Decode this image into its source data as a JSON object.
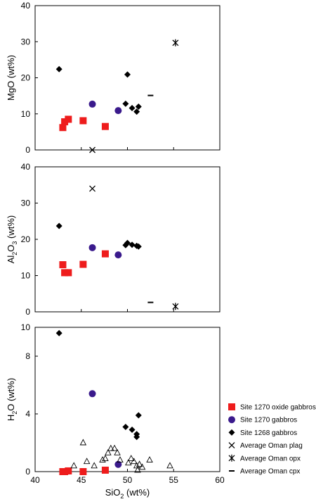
{
  "chart_data": [
    {
      "type": "scatter",
      "panel": "top",
      "ylabel": "MgO (wt%)",
      "ylabel_main": "MgO (wt%)",
      "ylabel_sub": "",
      "ylabel_rest": "",
      "ylim": [
        0,
        40
      ],
      "yticks": [
        "0",
        "10",
        "20",
        "30",
        "40"
      ],
      "xlim": [
        40,
        60
      ],
      "grid": false,
      "series": [
        {
          "name": "Site 1270 oxide gabbros",
          "marker": "square",
          "color": "#ee1c1c",
          "points": [
            [
              43.0,
              6.2
            ],
            [
              43.2,
              7.8
            ],
            [
              43.6,
              8.5
            ],
            [
              45.2,
              8.1
            ],
            [
              47.6,
              6.5
            ]
          ]
        },
        {
          "name": "Site 1270 gabbros",
          "marker": "circle",
          "color": "#3a1a8c",
          "points": [
            [
              46.2,
              12.7
            ],
            [
              49.0,
              10.9
            ]
          ]
        },
        {
          "name": "Site 1268 gabbros",
          "marker": "diamond",
          "color": "#000000",
          "points": [
            [
              42.6,
              22.4
            ],
            [
              49.8,
              12.8
            ],
            [
              50.0,
              20.9
            ],
            [
              50.5,
              11.6
            ],
            [
              51.0,
              10.6
            ],
            [
              51.2,
              12.0
            ]
          ]
        },
        {
          "name": "Average Oman plag",
          "marker": "x",
          "color": "#000000",
          "points": [
            [
              46.2,
              0.0
            ]
          ]
        },
        {
          "name": "Average Oman opx",
          "marker": "star",
          "color": "#000000",
          "points": [
            [
              55.2,
              29.7
            ]
          ]
        },
        {
          "name": "Average Oman cpx",
          "marker": "dash",
          "color": "#000000",
          "points": [
            [
              52.5,
              15.1
            ]
          ]
        }
      ]
    },
    {
      "type": "scatter",
      "panel": "middle",
      "ylabel": "Al2O3 (wt%)",
      "ylabel_main": "Al",
      "ylabel_sub": "2",
      "ylabel_rest": "O",
      "ylabel_sub2": "3",
      "ylabel_end": " (wt%)",
      "ylim": [
        0,
        40
      ],
      "yticks": [
        "0",
        "10",
        "20",
        "30",
        "40"
      ],
      "xlim": [
        40,
        60
      ],
      "grid": false,
      "series": [
        {
          "name": "Site 1270 oxide gabbros",
          "marker": "square",
          "color": "#ee1c1c",
          "points": [
            [
              43.0,
              13.0
            ],
            [
              43.2,
              10.8
            ],
            [
              43.6,
              10.8
            ],
            [
              45.2,
              13.1
            ],
            [
              47.6,
              16.0
            ]
          ]
        },
        {
          "name": "Site 1270 gabbros",
          "marker": "circle",
          "color": "#3a1a8c",
          "points": [
            [
              46.2,
              17.7
            ],
            [
              49.0,
              15.7
            ]
          ]
        },
        {
          "name": "Site 1268 gabbros",
          "marker": "diamond",
          "color": "#000000",
          "points": [
            [
              42.6,
              23.7
            ],
            [
              49.8,
              18.4
            ],
            [
              50.0,
              19.0
            ],
            [
              50.5,
              18.5
            ],
            [
              51.0,
              18.2
            ],
            [
              51.2,
              18.0
            ]
          ]
        },
        {
          "name": "Average Oman plag",
          "marker": "x",
          "color": "#000000",
          "points": [
            [
              46.2,
              34.0
            ]
          ]
        },
        {
          "name": "Average Oman opx",
          "marker": "star",
          "color": "#000000",
          "points": [
            [
              55.2,
              1.5
            ]
          ]
        },
        {
          "name": "Average Oman cpx",
          "marker": "dash",
          "color": "#000000",
          "points": [
            [
              52.5,
              2.6
            ]
          ]
        }
      ]
    },
    {
      "type": "scatter",
      "panel": "bottom",
      "ylabel": "H2O (wt%)",
      "ylabel_main": "H",
      "ylabel_sub": "2",
      "ylabel_rest": "O (wt%)",
      "xlabel": "SiO2 (wt%)",
      "xlabel_main": "SiO",
      "xlabel_sub": "2",
      "xlabel_rest": " (wt%)",
      "ylim": [
        0,
        10
      ],
      "yticks": [
        "0",
        "4",
        "8",
        "10"
      ],
      "ytick_values": [
        0,
        4,
        8,
        10
      ],
      "xlim": [
        40,
        60
      ],
      "xticks": [
        "40",
        "45",
        "50",
        "55",
        "60"
      ],
      "grid": false,
      "series": [
        {
          "name": "Site 1270 oxide gabbros",
          "marker": "square",
          "color": "#ee1c1c",
          "points": [
            [
              43.0,
              0.0
            ],
            [
              43.2,
              0.0
            ],
            [
              43.6,
              0.05
            ],
            [
              45.2,
              0.0
            ],
            [
              47.6,
              0.1
            ]
          ]
        },
        {
          "name": "Site 1270 gabbros",
          "marker": "circle",
          "color": "#3a1a8c",
          "points": [
            [
              46.2,
              5.4
            ],
            [
              49.0,
              0.5
            ]
          ]
        },
        {
          "name": "Site 1268 gabbros",
          "marker": "diamond",
          "color": "#000000",
          "points": [
            [
              42.6,
              9.6
            ],
            [
              49.8,
              3.1
            ],
            [
              50.5,
              2.9
            ],
            [
              51.0,
              2.6
            ],
            [
              51.0,
              2.4
            ],
            [
              51.2,
              3.9
            ]
          ]
        },
        {
          "name": "",
          "marker": "triangle-open",
          "color": "#000000",
          "points": [
            [
              44.2,
              0.4
            ],
            [
              45.2,
              2.0
            ],
            [
              45.6,
              0.7
            ],
            [
              46.4,
              0.4
            ],
            [
              47.3,
              0.8
            ],
            [
              47.6,
              0.9
            ],
            [
              47.9,
              1.3
            ],
            [
              48.2,
              1.6
            ],
            [
              48.6,
              1.6
            ],
            [
              48.9,
              1.3
            ],
            [
              49.2,
              0.8
            ],
            [
              50.1,
              0.6
            ],
            [
              50.4,
              0.9
            ],
            [
              50.7,
              0.7
            ],
            [
              51.0,
              0.4
            ],
            [
              51.1,
              0.1
            ],
            [
              51.3,
              0.5
            ],
            [
              51.6,
              0.3
            ],
            [
              52.4,
              0.8
            ],
            [
              54.6,
              0.4
            ]
          ]
        }
      ]
    }
  ],
  "legend": {
    "placement": "bottom-right",
    "items": [
      {
        "label": "Site 1270 oxide gabbros",
        "marker": "square",
        "color": "#ee1c1c"
      },
      {
        "label": "Site 1270 gabbros",
        "marker": "circle",
        "color": "#3a1a8c"
      },
      {
        "label": "Site 1268 gabbros",
        "marker": "diamond",
        "color": "#000000"
      },
      {
        "label": "Average Oman plag",
        "marker": "x",
        "color": "#000000"
      },
      {
        "label": "Average Oman opx",
        "marker": "star",
        "color": "#000000"
      },
      {
        "label": "Average Oman cpx",
        "marker": "dash",
        "color": "#000000"
      }
    ]
  }
}
